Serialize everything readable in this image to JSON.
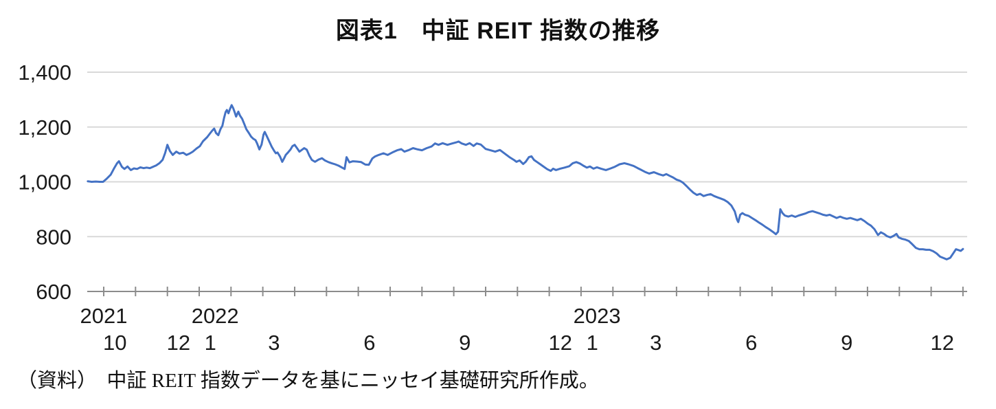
{
  "page": {
    "title": "図表1　中証 REIT 指数の推移",
    "source_note": "（資料）　中証 REIT 指数データを基にニッセイ基礎研究所作成。"
  },
  "colors": {
    "line": "#4472C4",
    "gridline": "#D9D9D9",
    "axis": "#8C8C8C",
    "text": "#1A1A1A"
  },
  "chart_data": {
    "type": "line",
    "title": "図表1　中証 REIT 指数の推移",
    "source": "（資料）　中証 REIT 指数データを基にニッセイ基礎研究所作成。",
    "grid": "horizontal",
    "legend": "none",
    "y_axis": {
      "range": [
        600,
        1400
      ],
      "ticks": [
        {
          "value": 1400,
          "label": "1,400"
        },
        {
          "value": 1200,
          "label": "1,200"
        },
        {
          "value": 1000,
          "label": "1,000"
        },
        {
          "value": 800,
          "label": "800"
        },
        {
          "value": 600,
          "label": "600"
        }
      ]
    },
    "x_axis": {
      "unit": "fractional months since 2021-10 tick",
      "tick_count": 28,
      "month_labels": [
        {
          "month_index": 0,
          "label": "10"
        },
        {
          "month_index": 2,
          "label": "12"
        },
        {
          "month_index": 3,
          "label": "1"
        },
        {
          "month_index": 5,
          "label": "3"
        },
        {
          "month_index": 8,
          "label": "6"
        },
        {
          "month_index": 11,
          "label": "9"
        },
        {
          "month_index": 14,
          "label": "12"
        },
        {
          "month_index": 15,
          "label": "1"
        },
        {
          "month_index": 17,
          "label": "3"
        },
        {
          "month_index": 20,
          "label": "6"
        },
        {
          "month_index": 23,
          "label": "9"
        },
        {
          "month_index": 26,
          "label": "12"
        }
      ],
      "year_labels": [
        {
          "position": 0.0,
          "label": "2021"
        },
        {
          "position": 3.5,
          "label": "2022"
        },
        {
          "position": 15.5,
          "label": "2023"
        }
      ]
    },
    "series": [
      {
        "name": "中証REIT指数",
        "color": "#4472C4",
        "points": [
          [
            -0.5,
            1002
          ],
          [
            -0.38,
            1000
          ],
          [
            -0.25,
            1001
          ],
          [
            -0.12,
            1000
          ],
          [
            -0.02,
            1000
          ],
          [
            0.1,
            1012
          ],
          [
            0.22,
            1026
          ],
          [
            0.32,
            1048
          ],
          [
            0.42,
            1068
          ],
          [
            0.48,
            1075
          ],
          [
            0.57,
            1055
          ],
          [
            0.65,
            1047
          ],
          [
            0.75,
            1056
          ],
          [
            0.85,
            1043
          ],
          [
            0.95,
            1049
          ],
          [
            1.05,
            1047
          ],
          [
            1.15,
            1053
          ],
          [
            1.25,
            1050
          ],
          [
            1.35,
            1052
          ],
          [
            1.45,
            1050
          ],
          [
            1.55,
            1055
          ],
          [
            1.65,
            1060
          ],
          [
            1.75,
            1068
          ],
          [
            1.85,
            1080
          ],
          [
            1.93,
            1105
          ],
          [
            2.0,
            1135
          ],
          [
            2.08,
            1112
          ],
          [
            2.17,
            1098
          ],
          [
            2.28,
            1110
          ],
          [
            2.38,
            1103
          ],
          [
            2.5,
            1106
          ],
          [
            2.6,
            1098
          ],
          [
            2.7,
            1103
          ],
          [
            2.8,
            1110
          ],
          [
            2.92,
            1122
          ],
          [
            3.02,
            1130
          ],
          [
            3.12,
            1148
          ],
          [
            3.25,
            1163
          ],
          [
            3.35,
            1178
          ],
          [
            3.42,
            1188
          ],
          [
            3.47,
            1194
          ],
          [
            3.53,
            1178
          ],
          [
            3.6,
            1170
          ],
          [
            3.67,
            1192
          ],
          [
            3.73,
            1205
          ],
          [
            3.78,
            1232
          ],
          [
            3.83,
            1254
          ],
          [
            3.87,
            1262
          ],
          [
            3.92,
            1250
          ],
          [
            3.97,
            1266
          ],
          [
            4.02,
            1280
          ],
          [
            4.07,
            1268
          ],
          [
            4.12,
            1252
          ],
          [
            4.16,
            1238
          ],
          [
            4.23,
            1256
          ],
          [
            4.28,
            1242
          ],
          [
            4.35,
            1230
          ],
          [
            4.42,
            1210
          ],
          [
            4.48,
            1192
          ],
          [
            4.56,
            1178
          ],
          [
            4.63,
            1165
          ],
          [
            4.7,
            1157
          ],
          [
            4.77,
            1152
          ],
          [
            4.82,
            1140
          ],
          [
            4.89,
            1118
          ],
          [
            4.96,
            1136
          ],
          [
            5.02,
            1172
          ],
          [
            5.06,
            1182
          ],
          [
            5.13,
            1165
          ],
          [
            5.22,
            1143
          ],
          [
            5.28,
            1128
          ],
          [
            5.36,
            1112
          ],
          [
            5.41,
            1104
          ],
          [
            5.46,
            1107
          ],
          [
            5.54,
            1092
          ],
          [
            5.61,
            1073
          ],
          [
            5.67,
            1086
          ],
          [
            5.72,
            1098
          ],
          [
            5.79,
            1107
          ],
          [
            5.87,
            1118
          ],
          [
            5.93,
            1130
          ],
          [
            6.0,
            1135
          ],
          [
            6.08,
            1122
          ],
          [
            6.15,
            1110
          ],
          [
            6.22,
            1116
          ],
          [
            6.3,
            1123
          ],
          [
            6.38,
            1117
          ],
          [
            6.46,
            1096
          ],
          [
            6.54,
            1080
          ],
          [
            6.64,
            1073
          ],
          [
            6.75,
            1081
          ],
          [
            6.86,
            1086
          ],
          [
            6.95,
            1078
          ],
          [
            7.06,
            1072
          ],
          [
            7.16,
            1068
          ],
          [
            7.27,
            1064
          ],
          [
            7.38,
            1059
          ],
          [
            7.49,
            1052
          ],
          [
            7.57,
            1047
          ],
          [
            7.63,
            1090
          ],
          [
            7.72,
            1071
          ],
          [
            7.83,
            1075
          ],
          [
            7.95,
            1074
          ],
          [
            8.09,
            1072
          ],
          [
            8.22,
            1063
          ],
          [
            8.33,
            1062
          ],
          [
            8.44,
            1085
          ],
          [
            8.52,
            1092
          ],
          [
            8.64,
            1098
          ],
          [
            8.79,
            1104
          ],
          [
            8.92,
            1098
          ],
          [
            9.07,
            1107
          ],
          [
            9.22,
            1115
          ],
          [
            9.35,
            1119
          ],
          [
            9.45,
            1110
          ],
          [
            9.57,
            1115
          ],
          [
            9.72,
            1123
          ],
          [
            9.87,
            1118
          ],
          [
            10.0,
            1115
          ],
          [
            10.15,
            1123
          ],
          [
            10.3,
            1129
          ],
          [
            10.41,
            1140
          ],
          [
            10.52,
            1135
          ],
          [
            10.65,
            1141
          ],
          [
            10.8,
            1135
          ],
          [
            10.95,
            1140
          ],
          [
            11.08,
            1144
          ],
          [
            11.15,
            1147
          ],
          [
            11.25,
            1140
          ],
          [
            11.38,
            1135
          ],
          [
            11.5,
            1141
          ],
          [
            11.62,
            1131
          ],
          [
            11.72,
            1140
          ],
          [
            11.85,
            1136
          ],
          [
            12.0,
            1120
          ],
          [
            12.15,
            1115
          ],
          [
            12.3,
            1110
          ],
          [
            12.45,
            1116
          ],
          [
            12.6,
            1103
          ],
          [
            12.75,
            1090
          ],
          [
            12.9,
            1079
          ],
          [
            12.97,
            1073
          ],
          [
            13.07,
            1078
          ],
          [
            13.18,
            1065
          ],
          [
            13.26,
            1073
          ],
          [
            13.36,
            1090
          ],
          [
            13.44,
            1093
          ],
          [
            13.52,
            1080
          ],
          [
            13.62,
            1072
          ],
          [
            13.72,
            1064
          ],
          [
            13.83,
            1055
          ],
          [
            13.94,
            1046
          ],
          [
            14.05,
            1040
          ],
          [
            14.12,
            1048
          ],
          [
            14.21,
            1043
          ],
          [
            14.34,
            1048
          ],
          [
            14.48,
            1052
          ],
          [
            14.63,
            1057
          ],
          [
            14.74,
            1068
          ],
          [
            14.85,
            1072
          ],
          [
            14.96,
            1067
          ],
          [
            15.07,
            1059
          ],
          [
            15.18,
            1052
          ],
          [
            15.28,
            1056
          ],
          [
            15.39,
            1048
          ],
          [
            15.5,
            1053
          ],
          [
            15.63,
            1048
          ],
          [
            15.78,
            1043
          ],
          [
            15.93,
            1049
          ],
          [
            16.06,
            1055
          ],
          [
            16.21,
            1064
          ],
          [
            16.36,
            1068
          ],
          [
            16.49,
            1064
          ],
          [
            16.65,
            1058
          ],
          [
            16.78,
            1050
          ],
          [
            16.9,
            1043
          ],
          [
            17.01,
            1036
          ],
          [
            17.14,
            1030
          ],
          [
            17.29,
            1035
          ],
          [
            17.44,
            1028
          ],
          [
            17.58,
            1023
          ],
          [
            17.68,
            1028
          ],
          [
            17.78,
            1022
          ],
          [
            17.89,
            1016
          ],
          [
            18.0,
            1008
          ],
          [
            18.1,
            1004
          ],
          [
            18.2,
            997
          ],
          [
            18.31,
            985
          ],
          [
            18.42,
            972
          ],
          [
            18.53,
            960
          ],
          [
            18.64,
            952
          ],
          [
            18.74,
            956
          ],
          [
            18.85,
            948
          ],
          [
            18.96,
            952
          ],
          [
            19.07,
            955
          ],
          [
            19.18,
            948
          ],
          [
            19.29,
            943
          ],
          [
            19.39,
            939
          ],
          [
            19.5,
            934
          ],
          [
            19.61,
            926
          ],
          [
            19.72,
            914
          ],
          [
            19.83,
            892
          ],
          [
            19.9,
            862
          ],
          [
            19.94,
            853
          ],
          [
            20.0,
            880
          ],
          [
            20.07,
            886
          ],
          [
            20.15,
            880
          ],
          [
            20.26,
            876
          ],
          [
            20.37,
            868
          ],
          [
            20.48,
            860
          ],
          [
            20.58,
            852
          ],
          [
            20.69,
            844
          ],
          [
            20.8,
            835
          ],
          [
            20.91,
            827
          ],
          [
            21.02,
            818
          ],
          [
            21.12,
            809
          ],
          [
            21.19,
            818
          ],
          [
            21.26,
            900
          ],
          [
            21.33,
            886
          ],
          [
            21.4,
            877
          ],
          [
            21.51,
            873
          ],
          [
            21.62,
            877
          ],
          [
            21.73,
            872
          ],
          [
            21.84,
            877
          ],
          [
            21.95,
            881
          ],
          [
            22.06,
            885
          ],
          [
            22.16,
            890
          ],
          [
            22.27,
            893
          ],
          [
            22.38,
            889
          ],
          [
            22.49,
            885
          ],
          [
            22.6,
            880
          ],
          [
            22.71,
            877
          ],
          [
            22.81,
            880
          ],
          [
            22.92,
            874
          ],
          [
            23.03,
            868
          ],
          [
            23.14,
            873
          ],
          [
            23.25,
            868
          ],
          [
            23.35,
            865
          ],
          [
            23.46,
            868
          ],
          [
            23.57,
            864
          ],
          [
            23.68,
            860
          ],
          [
            23.79,
            865
          ],
          [
            23.9,
            857
          ],
          [
            24.0,
            848
          ],
          [
            24.11,
            840
          ],
          [
            24.22,
            827
          ],
          [
            24.33,
            806
          ],
          [
            24.42,
            816
          ],
          [
            24.52,
            810
          ],
          [
            24.61,
            802
          ],
          [
            24.72,
            797
          ],
          [
            24.82,
            803
          ],
          [
            24.91,
            810
          ],
          [
            24.98,
            797
          ],
          [
            25.08,
            792
          ],
          [
            25.19,
            789
          ],
          [
            25.3,
            784
          ],
          [
            25.41,
            772
          ],
          [
            25.52,
            759
          ],
          [
            25.63,
            754
          ],
          [
            25.74,
            754
          ],
          [
            25.84,
            752
          ],
          [
            25.95,
            752
          ],
          [
            26.06,
            747
          ],
          [
            26.17,
            739
          ],
          [
            26.28,
            727
          ],
          [
            26.39,
            722
          ],
          [
            26.49,
            717
          ],
          [
            26.6,
            723
          ],
          [
            26.71,
            742
          ],
          [
            26.78,
            754
          ],
          [
            26.86,
            751
          ],
          [
            26.93,
            748
          ],
          [
            27.0,
            755
          ]
        ]
      }
    ]
  }
}
